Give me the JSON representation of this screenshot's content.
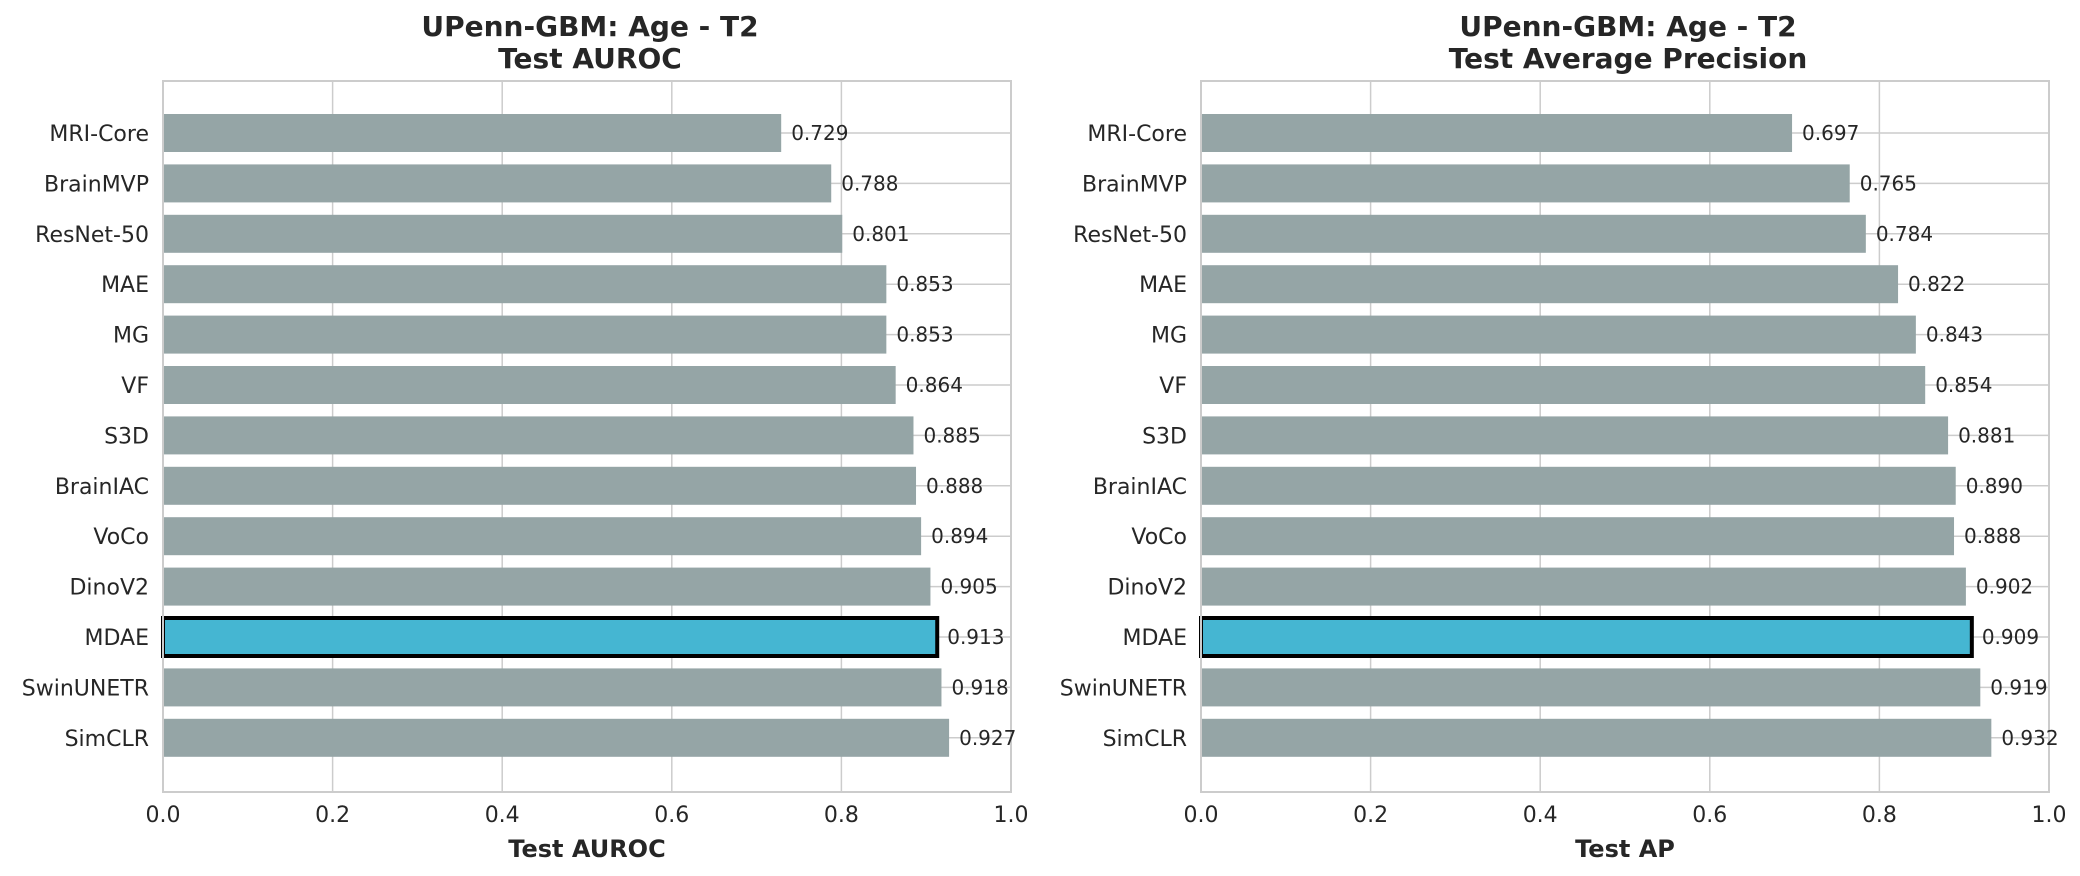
{
  "chart_data": [
    {
      "type": "bar",
      "orientation": "horizontal",
      "title_line1": "UPenn-GBM: Age - T2",
      "title_line2": "Test AUROC",
      "xlabel": "Test AUROC",
      "ylabel": "",
      "xlim": [
        0.0,
        1.0
      ],
      "xticks": [
        "0.0",
        "0.2",
        "0.4",
        "0.6",
        "0.8",
        "1.0"
      ],
      "grid": true,
      "highlight": "MDAE",
      "categories": [
        "MRI-Core",
        "BrainMVP",
        "ResNet-50",
        "MAE",
        "MG",
        "VF",
        "S3D",
        "BrainIAC",
        "VoCo",
        "DinoV2",
        "MDAE",
        "SwinUNETR",
        "SimCLR"
      ],
      "values": [
        0.729,
        0.788,
        0.801,
        0.853,
        0.853,
        0.864,
        0.885,
        0.888,
        0.894,
        0.905,
        0.913,
        0.918,
        0.927
      ],
      "value_labels": [
        "0.729",
        "0.788",
        "0.801",
        "0.853",
        "0.853",
        "0.864",
        "0.885",
        "0.888",
        "0.894",
        "0.905",
        "0.913",
        "0.918",
        "0.927"
      ]
    },
    {
      "type": "bar",
      "orientation": "horizontal",
      "title_line1": "UPenn-GBM: Age - T2",
      "title_line2": "Test Average Precision",
      "xlabel": "Test AP",
      "ylabel": "",
      "xlim": [
        0.0,
        1.0
      ],
      "xticks": [
        "0.0",
        "0.2",
        "0.4",
        "0.6",
        "0.8",
        "1.0"
      ],
      "grid": true,
      "highlight": "MDAE",
      "categories": [
        "MRI-Core",
        "BrainMVP",
        "ResNet-50",
        "MAE",
        "MG",
        "VF",
        "S3D",
        "BrainIAC",
        "VoCo",
        "DinoV2",
        "MDAE",
        "SwinUNETR",
        "SimCLR"
      ],
      "values": [
        0.697,
        0.765,
        0.784,
        0.822,
        0.843,
        0.854,
        0.881,
        0.89,
        0.888,
        0.902,
        0.909,
        0.919,
        0.932
      ],
      "value_labels": [
        "0.697",
        "0.765",
        "0.784",
        "0.822",
        "0.843",
        "0.854",
        "0.881",
        "0.890",
        "0.888",
        "0.902",
        "0.909",
        "0.919",
        "0.932"
      ]
    }
  ],
  "colors": {
    "bar": "#95a5a6",
    "highlight_bar": "#45b6d2",
    "highlight_edge": "#000000"
  }
}
